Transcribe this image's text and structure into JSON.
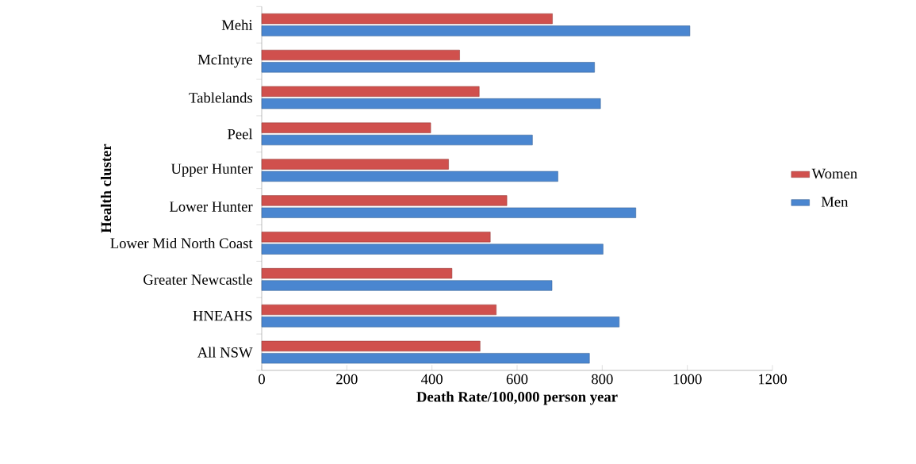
{
  "chart_data": {
    "type": "bar",
    "orientation": "horizontal",
    "xlabel": "Death Rate/100,000 person year",
    "ylabel": "Health cluster",
    "categories": [
      "Mehi",
      "McIntyre",
      "Tablelands",
      "Peel",
      "Upper Hunter",
      "Lower Hunter",
      "Lower Mid North Coast",
      "Greater Newcastle",
      "HNEAHS",
      "All NSW"
    ],
    "series": [
      {
        "name": "Women",
        "color": "#d0504d",
        "values": [
          683,
          465,
          511,
          397,
          439,
          576,
          537,
          447,
          551,
          513
        ]
      },
      {
        "name": "Men",
        "color": "#4a86d0",
        "values": [
          1006,
          782,
          796,
          636,
          696,
          879,
          802,
          682,
          840,
          770
        ]
      }
    ],
    "xlim": [
      0,
      1200
    ],
    "xticks": [
      0,
      200,
      400,
      600,
      800,
      1000,
      1200
    ],
    "grid": false,
    "legend": "right"
  }
}
